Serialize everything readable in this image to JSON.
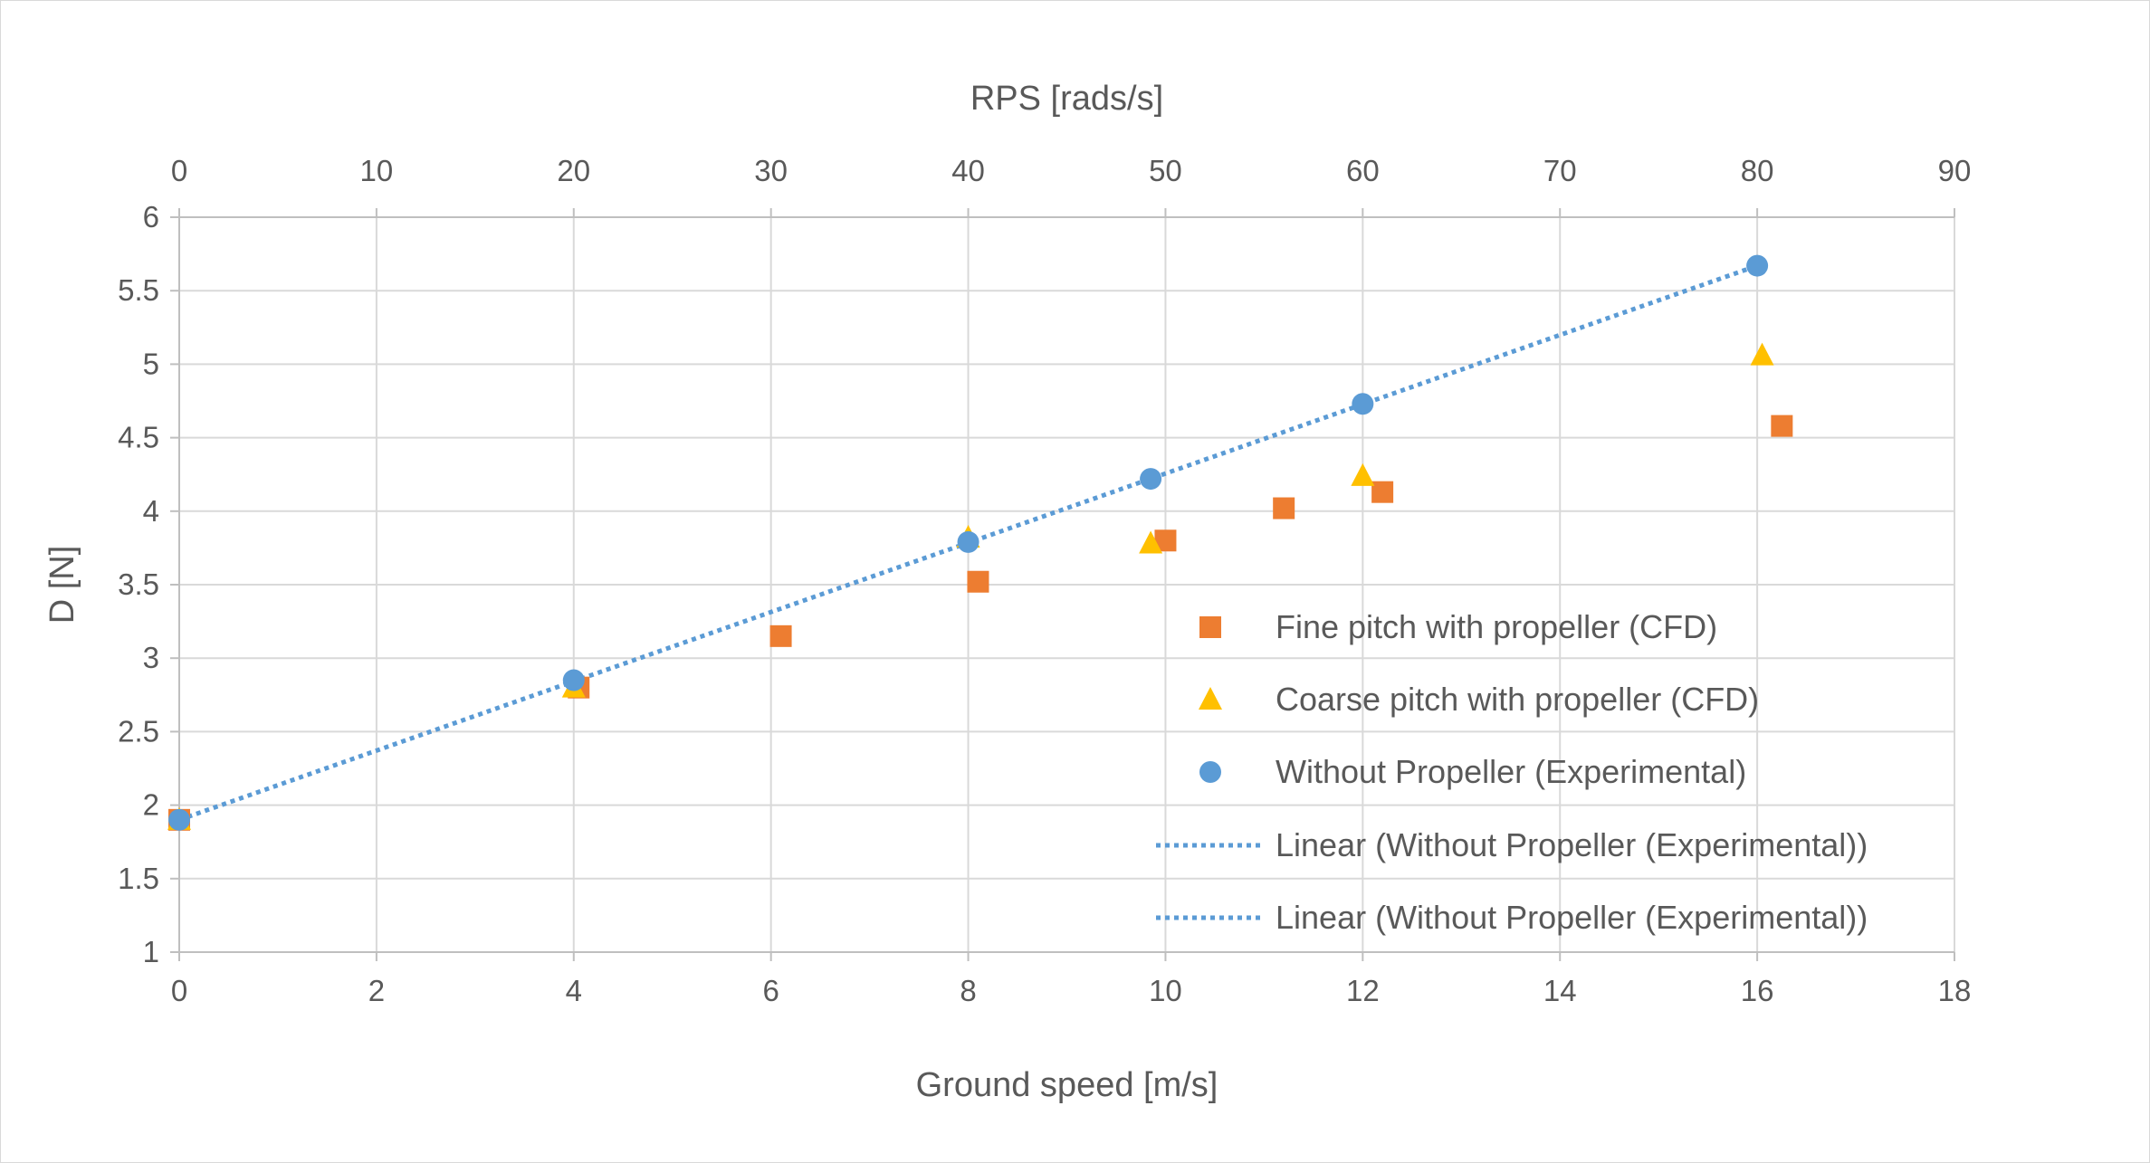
{
  "chart_data": {
    "type": "scatter",
    "title": "",
    "xlabel": "Ground speed [m/s]",
    "x2label": "RPS [rads/s]",
    "ylabel": "D [N]",
    "xlim": [
      0,
      18
    ],
    "x2lim": [
      0,
      90
    ],
    "ylim": [
      1,
      6
    ],
    "x_ticks": [
      "0",
      "2",
      "4",
      "6",
      "8",
      "10",
      "12",
      "14",
      "16",
      "18"
    ],
    "x2_ticks": [
      "0",
      "10",
      "20",
      "30",
      "40",
      "50",
      "60",
      "70",
      "80",
      "90"
    ],
    "y_ticks": [
      "1",
      "1.5",
      "2",
      "2.5",
      "3",
      "3.5",
      "4",
      "4.5",
      "5",
      "5.5",
      "6"
    ],
    "grid": true,
    "legend_position": "right",
    "series": [
      {
        "name": "Fine pitch with propeller (CFD)",
        "marker": "square",
        "color": "#ED7D31",
        "points": [
          [
            0,
            1.9
          ],
          [
            4.05,
            2.8
          ],
          [
            6.1,
            3.15
          ],
          [
            8.1,
            3.52
          ],
          [
            10.0,
            3.8
          ],
          [
            11.2,
            4.02
          ],
          [
            12.2,
            4.13
          ],
          [
            16.25,
            4.58
          ]
        ]
      },
      {
        "name": "Coarse pitch with propeller (CFD)",
        "marker": "triangle",
        "color": "#FFC000",
        "points": [
          [
            0,
            1.9
          ],
          [
            4.0,
            2.8
          ],
          [
            8.0,
            3.82
          ],
          [
            9.85,
            3.78
          ],
          [
            12.0,
            4.24
          ],
          [
            16.05,
            5.06
          ]
        ]
      },
      {
        "name": "Without Propeller (Experimental)",
        "marker": "circle",
        "color": "#5B9BD5",
        "points": [
          [
            0,
            1.9
          ],
          [
            4.0,
            2.85
          ],
          [
            8.0,
            3.79
          ],
          [
            9.85,
            4.22
          ],
          [
            12.0,
            4.73
          ],
          [
            16.0,
            5.67
          ]
        ]
      }
    ],
    "trendlines": [
      {
        "name": "Linear (Without Propeller (Experimental))",
        "style": "dotted",
        "color": "#5B9BD5",
        "x": [
          0,
          16
        ],
        "y": [
          1.9,
          5.67
        ]
      },
      {
        "name": "Linear (Without Propeller (Experimental))",
        "style": "dotted",
        "color": "#5B9BD5",
        "x": [
          0,
          16
        ],
        "y": [
          1.9,
          5.67
        ]
      }
    ]
  }
}
